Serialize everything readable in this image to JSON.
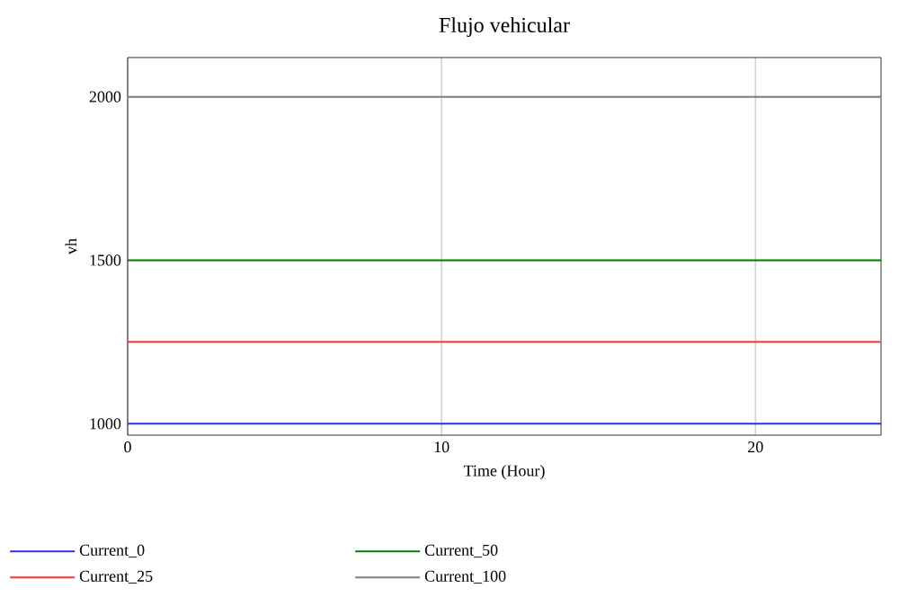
{
  "chart_data": {
    "type": "line",
    "title": "Flujo vehicular",
    "xlabel": "Time (Hour)",
    "ylabel": "vh",
    "xlim": [
      0,
      24
    ],
    "ylim": [
      965,
      2120
    ],
    "xticks": [
      0,
      10,
      20
    ],
    "yticks": [
      1000,
      1500,
      2000
    ],
    "grid": true,
    "legend": "bottom",
    "marker": "none",
    "line_style": "solid",
    "x": [
      0,
      24
    ],
    "series": [
      {
        "name": "Current_0",
        "color": "#3333dd",
        "values": [
          1000,
          1000
        ]
      },
      {
        "name": "Current_25",
        "color": "#ff3333",
        "values": [
          1250,
          1250
        ]
      },
      {
        "name": "Current_50",
        "color": "#008000",
        "values": [
          1500,
          1500
        ]
      },
      {
        "name": "Current_100",
        "color": "#808080",
        "values": [
          2000,
          2000
        ]
      }
    ]
  }
}
